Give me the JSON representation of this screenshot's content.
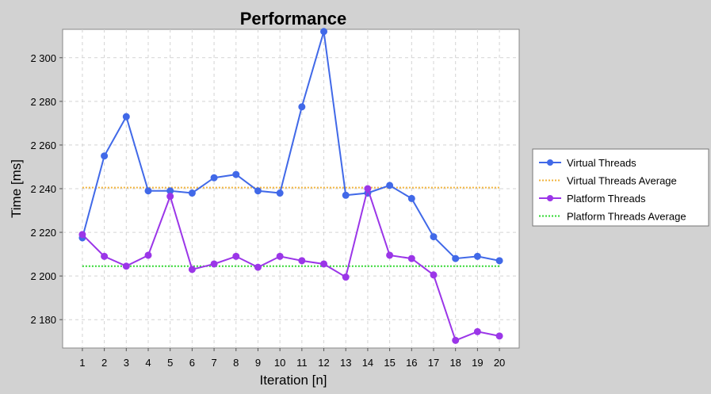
{
  "chart_data": {
    "type": "line",
    "title": "Performance",
    "xlabel": "Iteration [n]",
    "ylabel": "Time [ms]",
    "x": [
      1,
      2,
      3,
      4,
      5,
      6,
      7,
      8,
      9,
      10,
      11,
      12,
      13,
      14,
      15,
      16,
      17,
      18,
      19,
      20
    ],
    "ylim": [
      2167,
      2313
    ],
    "xlim": [
      0.1,
      20.9
    ],
    "yticks": [
      2180,
      2200,
      2220,
      2240,
      2260,
      2280,
      2300
    ],
    "ytick_labels": [
      "2 180",
      "2 200",
      "2 220",
      "2 240",
      "2 260",
      "2 280",
      "2 300"
    ],
    "grid": true,
    "legend_position": "right",
    "series": [
      {
        "name": "Virtual Threads",
        "color": "#4169e8",
        "style": "solid-markers",
        "values": [
          2217.5,
          2255,
          2273,
          2239,
          2239,
          2238,
          2245,
          2246.5,
          2239,
          2238,
          2277.5,
          2312,
          2237,
          2238,
          2241.5,
          2235.5,
          2218,
          2208,
          2209,
          2207
        ]
      },
      {
        "name": "Virtual Threads Average",
        "color": "#f2b43c",
        "style": "dotted",
        "values": [
          2240.5,
          2240.5,
          2240.5,
          2240.5,
          2240.5,
          2240.5,
          2240.5,
          2240.5,
          2240.5,
          2240.5,
          2240.5,
          2240.5,
          2240.5,
          2240.5,
          2240.5,
          2240.5,
          2240.5,
          2240.5,
          2240.5,
          2240.5
        ]
      },
      {
        "name": "Platform Threads",
        "color": "#9b36e8",
        "style": "solid-markers",
        "values": [
          2219,
          2209,
          2204.5,
          2209.5,
          2236.5,
          2203,
          2205.5,
          2209,
          2204,
          2209,
          2207,
          2205.5,
          2199.5,
          2240,
          2209.5,
          2208,
          2200.5,
          2170.5,
          2174.5,
          2172.5
        ]
      },
      {
        "name": "Platform Threads Average",
        "color": "#2fd82f",
        "style": "dotted",
        "values": [
          2204.5,
          2204.5,
          2204.5,
          2204.5,
          2204.5,
          2204.5,
          2204.5,
          2204.5,
          2204.5,
          2204.5,
          2204.5,
          2204.5,
          2204.5,
          2204.5,
          2204.5,
          2204.5,
          2204.5,
          2204.5,
          2204.5,
          2204.5
        ]
      }
    ]
  }
}
